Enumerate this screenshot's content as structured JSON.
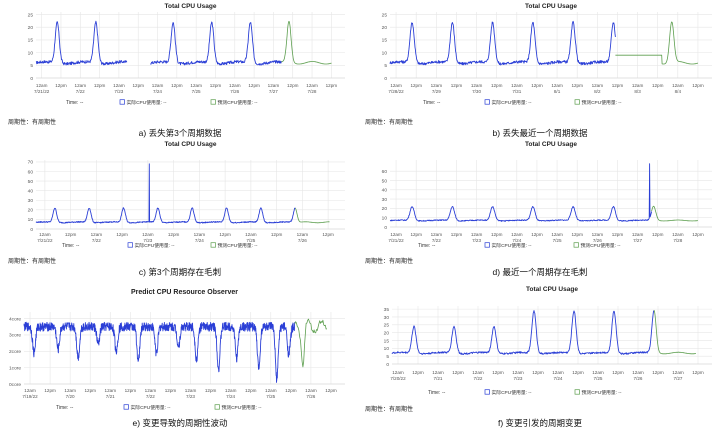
{
  "colors": {
    "actual": "#2b3fd6",
    "predicted": "#5c9e4e"
  },
  "legend": {
    "actual": "实际CPU使用量: --",
    "predicted": "预测CPU使用量: --"
  },
  "time_label": "Time:",
  "time_value": "--",
  "periodicity_label": "周期性：有周期性",
  "chart_data": [
    {
      "id": "a",
      "type": "line",
      "title": "Total CPU Usage",
      "caption": "a) 丢失第3个周期数据",
      "show_periodicity": true,
      "yticks": [
        0,
        5,
        10,
        15,
        20,
        25
      ],
      "ylim": [
        0,
        26
      ],
      "xticks": [
        "12am\n7/21/22",
        "12pm",
        "12am\n7/22",
        "12pm",
        "12am\n7/23",
        "12pm",
        "12am\n7/24",
        "12pm",
        "12am\n7/25",
        "12pm",
        "12am\n7/26",
        "12pm",
        "12am\n7/27",
        "12pm",
        "12am\n7/28",
        "12pm"
      ],
      "peak_days": [
        0,
        1,
        3,
        4,
        5,
        6
      ],
      "gap_days": [
        [
          2,
          3
        ]
      ],
      "peak_heights": [
        22,
        22,
        22,
        22,
        22,
        22
      ],
      "spikes": [],
      "baseline": 6,
      "predicted_start_day": 6.35,
      "predicted_peak": 22,
      "last_day": 7.65
    },
    {
      "id": "b",
      "type": "line",
      "title": "Total CPU Usage",
      "caption": "b) 丢失最近一个周期数据",
      "show_periodicity": true,
      "yticks": [
        0,
        5,
        10,
        15,
        20,
        25
      ],
      "ylim": [
        0,
        26
      ],
      "xticks": [
        "12am\n7/28/22",
        "12pm",
        "12am\n7/29",
        "12pm",
        "12am\n7/30",
        "12pm",
        "12am\n7/31",
        "12pm",
        "12am\n8/1",
        "12pm",
        "12am\n8/2",
        "12pm",
        "12am\n8/3",
        "12pm",
        "12am\n8/4",
        "12pm"
      ],
      "peak_days": [
        0,
        1,
        2,
        3,
        4,
        5
      ],
      "gap_days": [],
      "peak_heights": [
        22,
        22,
        22,
        22,
        22,
        22
      ],
      "spikes": [],
      "baseline": 6,
      "predicted_start_day": 5.6,
      "predicted_flat_until": 7.0,
      "predicted_peak": 22,
      "predicted_peak_day": 7.0,
      "last_day": 7.65
    },
    {
      "id": "c",
      "type": "line",
      "title": "Total CPU Usage",
      "caption": "c) 第3个周期存在毛刺",
      "show_periodicity": true,
      "yticks": [
        0,
        10,
        20,
        30,
        40,
        50,
        60,
        70
      ],
      "ylim": [
        0,
        72
      ],
      "xticks": [
        "12am\n7/21/22",
        "12pm",
        "12am\n7/22",
        "12pm",
        "12am\n7/23",
        "12pm",
        "12am\n7/24",
        "12pm",
        "12am\n7/25",
        "12pm",
        "12am\n7/26",
        "12pm"
      ],
      "peak_days": [
        0,
        1,
        2,
        3,
        4,
        5,
        6,
        7,
        8
      ],
      "gap_days": [],
      "peak_heights": [
        22,
        22,
        22,
        22,
        22,
        22,
        22,
        22,
        22
      ],
      "spikes": [
        {
          "day": 3.3,
          "value": 68
        }
      ],
      "baseline": 7,
      "predicted_start_day": 7.55,
      "predicted_peak": 22,
      "last_day": 8.55
    },
    {
      "id": "d",
      "type": "line",
      "title": "Total CPU Usage",
      "caption": "d) 最近一个周期存在毛刺",
      "show_periodicity": true,
      "yticks": [
        0,
        10,
        20,
        30,
        40,
        50,
        60
      ],
      "ylim": [
        0,
        72
      ],
      "xticks": [
        "12am\n7/21/22",
        "12pm",
        "12am\n7/22",
        "12pm",
        "12am\n7/23",
        "12pm",
        "12am\n7/24",
        "12pm",
        "12am\n7/25",
        "12pm",
        "12am\n7/26",
        "12pm",
        "12am\n7/27",
        "12pm",
        "12am\n7/28",
        "12pm"
      ],
      "peak_days": [
        0,
        1,
        2,
        3,
        4,
        5,
        6,
        7
      ],
      "gap_days": [],
      "peak_heights": [
        22,
        22,
        22,
        22,
        22,
        22,
        22,
        22
      ],
      "spikes": [
        {
          "day": 6.45,
          "value": 68
        }
      ],
      "baseline": 7,
      "predicted_start_day": 6.5,
      "predicted_peak": 22,
      "last_day": 7.65
    },
    {
      "id": "e",
      "type": "line",
      "title": "Predict CPU Resource Observer",
      "caption": "e) 变更导致的周期性波动",
      "show_periodicity": false,
      "yticks": [
        "0core",
        "1core",
        "2core",
        "3core",
        "4core"
      ],
      "ylim": [
        0,
        4.4
      ],
      "xticks": [
        "12am\n7/19/22",
        "12pm",
        "12am\n7/20",
        "12pm",
        "12am\n7/21",
        "12pm",
        "12am\n7/22",
        "12pm",
        "12am\n7/23",
        "12pm",
        "12am\n7/24",
        "12pm",
        "12am\n7/25",
        "12pm",
        "12am\n7/26",
        "12pm"
      ],
      "noisy": true,
      "baseline": 3.5,
      "dip_days": [
        0.25,
        0.85,
        1.35,
        1.85,
        2.3,
        2.85,
        3.3,
        3.85,
        4.3,
        4.85,
        5.3,
        5.85,
        6.3,
        6.6
      ],
      "dip_levels": [
        1.9,
        2.1,
        1.6,
        2.4,
        2.0,
        1.4,
        1.9,
        2.3,
        1.5,
        0.9,
        1.6,
        1.0,
        0.3,
        1.8
      ],
      "peak_days": [],
      "gap_days": [],
      "peak_heights": [],
      "spikes": [],
      "predicted_start_day": 6.75,
      "last_day": 7.55
    },
    {
      "id": "f",
      "type": "line",
      "title": "Total CPU Usage",
      "caption": "f) 变更引发的周期变更",
      "show_periodicity": true,
      "yticks": [
        0,
        5,
        10,
        15,
        20,
        25,
        30,
        35
      ],
      "ylim": [
        0,
        37
      ],
      "xticks": [
        "12am\n7/20/22",
        "12pm",
        "12am\n7/21",
        "12pm",
        "12am\n7/22",
        "12pm",
        "12am\n7/23",
        "12pm",
        "12am\n7/24",
        "12pm",
        "12am\n7/25",
        "12pm",
        "12am\n7/26",
        "12pm",
        "12am\n7/27",
        "12pm"
      ],
      "peak_days": [
        0,
        1,
        2,
        3,
        4,
        5,
        6
      ],
      "gap_days": [],
      "peak_heights": [
        24,
        24,
        24,
        34,
        34,
        34,
        34
      ],
      "spikes": [],
      "baseline": 7,
      "predicted_start_day": 6.55,
      "predicted_peak": 34,
      "last_day": 7.6
    }
  ]
}
